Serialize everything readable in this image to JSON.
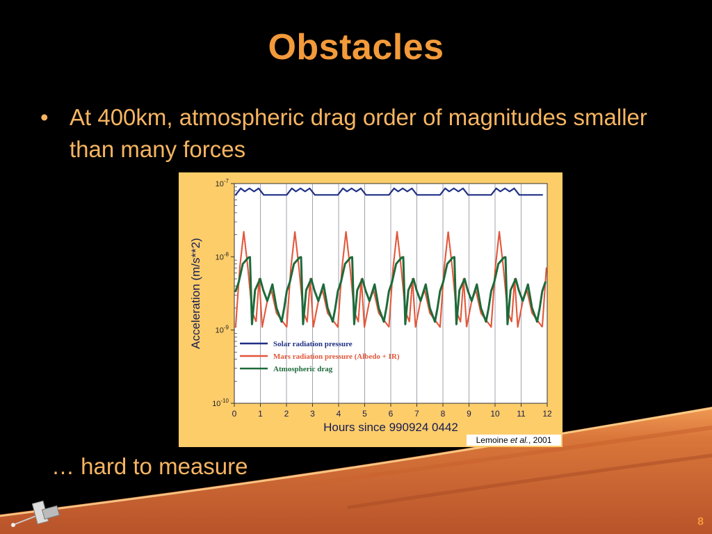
{
  "slide": {
    "title": "Obstacles",
    "bullet_marker": "•",
    "bullet": "At 400km, atmospheric drag order of magnitudes smaller than many forces",
    "footer_text": "… hard to measure",
    "page_number": "8",
    "credit": {
      "author": "Lemoine ",
      "etal": "et al.",
      "year": ", 2001"
    },
    "colors": {
      "title": "#f39a3a",
      "text": "#f7b562",
      "figure_bg": "#fdcd6a"
    }
  },
  "chart_data": {
    "type": "line",
    "xlabel": "Hours since 990924 0442",
    "ylabel": "Acceleration (m/s**2)",
    "xlim": [
      0,
      12
    ],
    "ylim": [
      1e-10,
      1e-07
    ],
    "yscale": "log",
    "x_ticks": [
      "0",
      "1",
      "2",
      "3",
      "4",
      "5",
      "6",
      "7",
      "8",
      "9",
      "10",
      "11",
      "12"
    ],
    "y_ticks": [
      {
        "base": "10",
        "exp": "-10",
        "value": 1e-10
      },
      {
        "base": "10",
        "exp": "-9",
        "value": 1e-09
      },
      {
        "base": "10",
        "exp": "-8",
        "value": 1e-08
      },
      {
        "base": "10",
        "exp": "-7",
        "value": 1e-07
      }
    ],
    "grid": {
      "vertical": true,
      "horizontal": false
    },
    "legend_position": "lower-left",
    "orbit_period_hours": 1.96,
    "series": [
      {
        "name": "Solar radiation pressure",
        "color": "#1f2f85",
        "style": "solid",
        "cycle": [
          {
            "phase": 0.0,
            "value": 7e-08
          },
          {
            "phase": 0.1,
            "value": 8.6e-08
          },
          {
            "phase": 0.18,
            "value": 7.8e-08
          },
          {
            "phase": 0.27,
            "value": 8.6e-08
          },
          {
            "phase": 0.36,
            "value": 7.8e-08
          },
          {
            "phase": 0.45,
            "value": 8.6e-08
          },
          {
            "phase": 0.55,
            "value": 7e-08
          }
        ]
      },
      {
        "name": "Mars radiation pressure (Albedo + IR)",
        "color": "#e2573a",
        "style": "dotted",
        "cycle": [
          {
            "phase": 0.0,
            "value": 1.1e-09
          },
          {
            "phase": 0.08,
            "value": 7e-09
          },
          {
            "phase": 0.16,
            "value": 2.2e-08
          },
          {
            "phase": 0.24,
            "value": 7e-09
          },
          {
            "phase": 0.32,
            "value": 1.8e-09
          },
          {
            "phase": 0.4,
            "value": 1.3e-09
          },
          {
            "phase": 0.46,
            "value": 5e-09
          },
          {
            "phase": 0.52,
            "value": 1.1e-09
          },
          {
            "phase": 0.62,
            "value": 2.5e-09
          },
          {
            "phase": 0.7,
            "value": 3.5e-09
          },
          {
            "phase": 0.8,
            "value": 1.7e-09
          },
          {
            "phase": 1.0,
            "value": 1.1e-09
          }
        ]
      },
      {
        "name": "Atmospheric drag",
        "color": "#1e6a3a",
        "style": "solid",
        "cycle": [
          {
            "phase": 0.0,
            "value": 3.4e-09
          },
          {
            "phase": 0.06,
            "value": 4.5e-09
          },
          {
            "phase": 0.14,
            "value": 8e-09
          },
          {
            "phase": 0.25,
            "value": 9.8e-09
          },
          {
            "phase": 0.28,
            "value": 9.9e-09
          },
          {
            "phase": 0.32,
            "value": 1.2e-09
          },
          {
            "phase": 0.38,
            "value": 3.5e-09
          },
          {
            "phase": 0.48,
            "value": 5e-09
          },
          {
            "phase": 0.54,
            "value": 3.5e-09
          },
          {
            "phase": 0.62,
            "value": 2.5e-09
          },
          {
            "phase": 0.72,
            "value": 4.2e-09
          },
          {
            "phase": 0.8,
            "value": 2e-09
          },
          {
            "phase": 0.9,
            "value": 1.3e-09
          },
          {
            "phase": 0.95,
            "value": 2e-09
          },
          {
            "phase": 1.0,
            "value": 3.4e-09
          }
        ]
      }
    ]
  }
}
